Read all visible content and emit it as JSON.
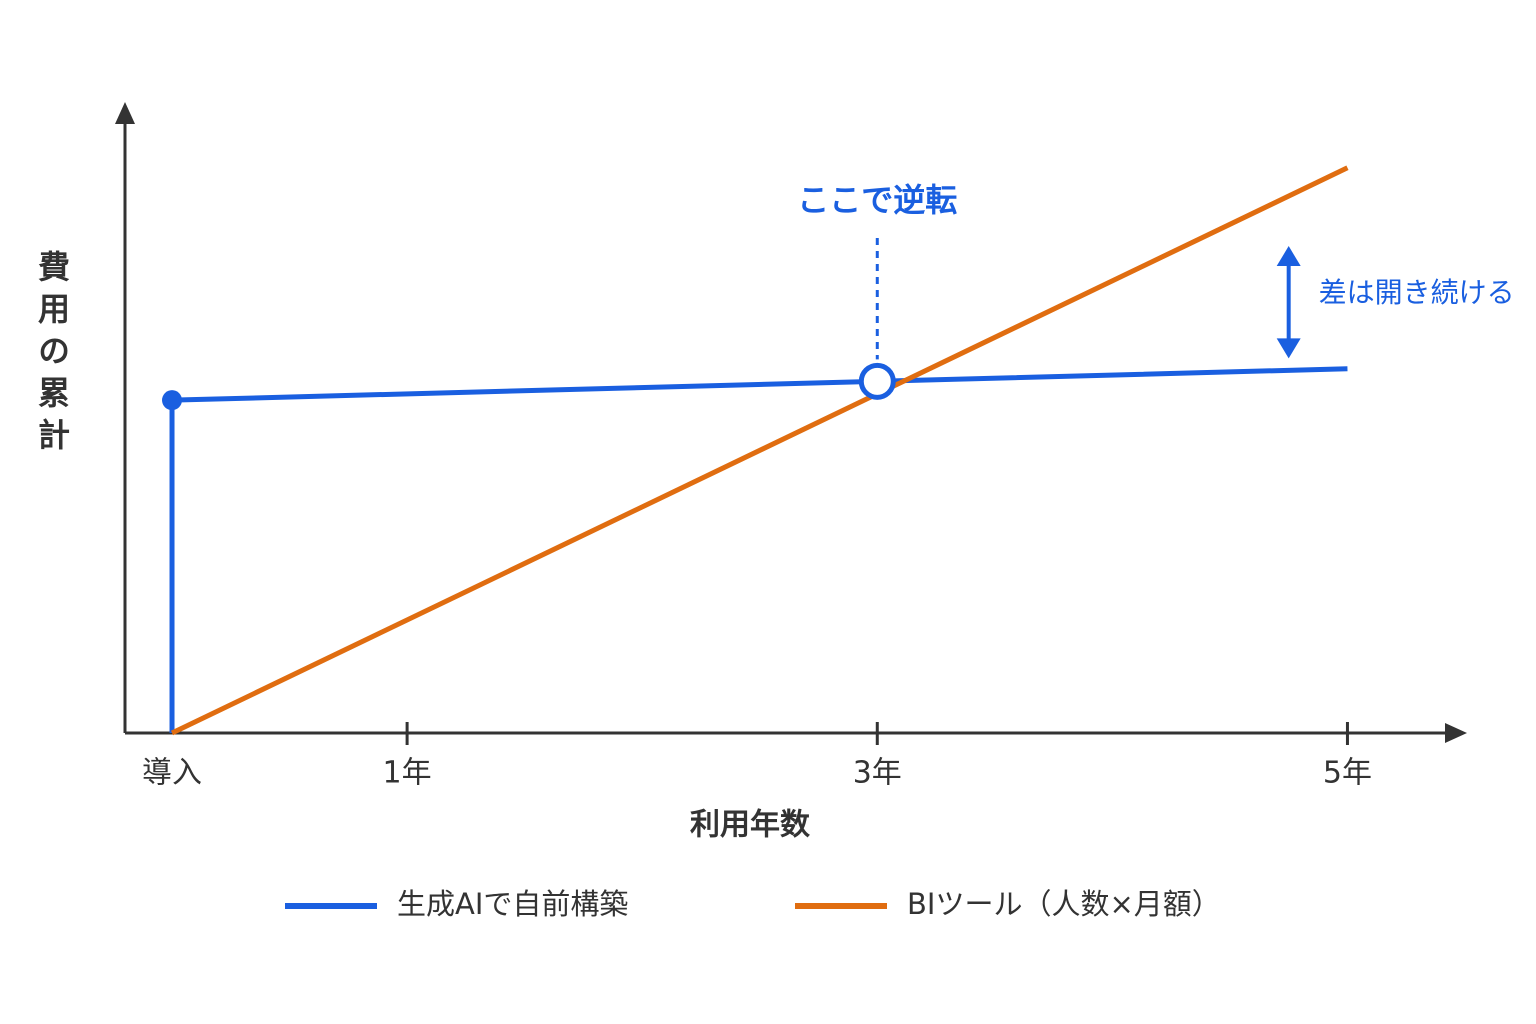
{
  "chart_data": {
    "type": "line",
    "y_label": "費用の累計",
    "x_label": "利用年数",
    "xlim": [
      -0.2,
      5.5
    ],
    "xticks": [
      {
        "value": 0,
        "label": "導入"
      },
      {
        "value": 1,
        "label": "1年"
      },
      {
        "value": 3,
        "label": "3年"
      },
      {
        "value": 5,
        "label": "5年"
      }
    ],
    "ylim": [
      0,
      100
    ],
    "series": [
      {
        "name": "生成AIで自前構築",
        "color": "#1a5fe0",
        "x": [
          0,
          0,
          5
        ],
        "values": [
          0,
          53,
          58
        ]
      },
      {
        "name": "BIツール（人数×月額）",
        "color": "#e06d10",
        "x": [
          0,
          5
        ],
        "values": [
          0,
          90
        ]
      }
    ],
    "annotations": [
      {
        "text": "ここで逆転",
        "x": 3,
        "y": 56
      },
      {
        "text": "差は開き続ける",
        "x": 4.75
      }
    ]
  }
}
